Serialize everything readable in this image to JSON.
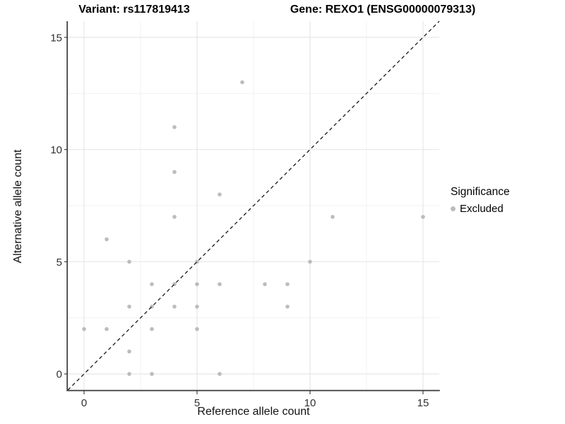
{
  "chart_data": {
    "type": "scatter",
    "title_variant": "Variant: rs117819413",
    "title_gene": "Gene: REXO1 (ENSG00000079313)",
    "xlabel": "Reference allele count",
    "ylabel": "Alternative allele count",
    "points": [
      [
        0,
        2
      ],
      [
        1,
        2
      ],
      [
        1,
        6
      ],
      [
        2,
        0
      ],
      [
        2,
        1
      ],
      [
        2,
        3
      ],
      [
        2,
        5
      ],
      [
        3,
        0
      ],
      [
        3,
        2
      ],
      [
        3,
        3
      ],
      [
        3,
        4
      ],
      [
        4,
        3
      ],
      [
        4,
        4
      ],
      [
        4,
        7
      ],
      [
        4,
        9
      ],
      [
        4,
        11
      ],
      [
        5,
        2
      ],
      [
        5,
        3
      ],
      [
        5,
        4
      ],
      [
        5,
        5
      ],
      [
        6,
        0
      ],
      [
        6,
        4
      ],
      [
        6,
        8
      ],
      [
        7,
        13
      ],
      [
        8,
        4
      ],
      [
        9,
        3
      ],
      [
        9,
        4
      ],
      [
        10,
        5
      ],
      [
        11,
        7
      ],
      [
        15,
        7
      ]
    ],
    "x_ticks": [
      0,
      5,
      10,
      15
    ],
    "y_ticks": [
      0,
      5,
      10,
      15
    ],
    "x_minor": [
      2.5,
      7.5,
      12.5
    ],
    "y_minor": [
      2.5,
      7.5,
      12.5
    ],
    "xlim": [
      -0.72,
      15.72
    ],
    "ylim": [
      -0.72,
      15.72
    ],
    "grid": "major+minor",
    "reference_line": "dashed identity line y=x",
    "legend": {
      "title": "Significance",
      "position": "right",
      "entries": [
        {
          "label": "Excluded",
          "marker": "circle",
          "color": "#bcbcbc"
        }
      ]
    },
    "colors": {
      "point": "#bcbcbc",
      "grid_major": "#e4e4e4",
      "grid_minor": "#f1f1f1",
      "axis_line": "#3a3a3a",
      "tick": "#333333",
      "tick_label": "#303030",
      "dashed_line": "#1a1a1a"
    }
  }
}
